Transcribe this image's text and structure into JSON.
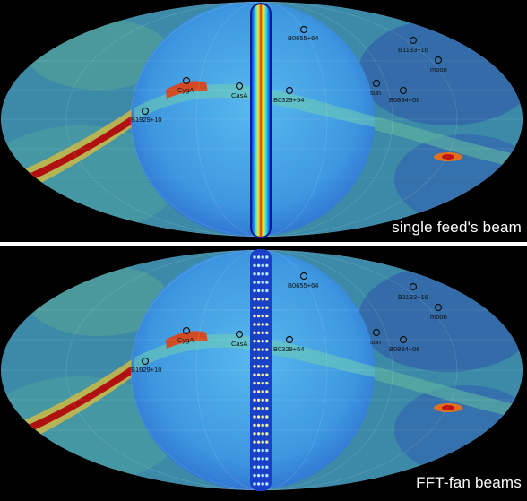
{
  "panels": [
    {
      "caption": "single feed's beam",
      "beam_style": "single-feed",
      "sources": [
        {
          "name": "B0655+64"
        },
        {
          "name": "B1133+16"
        },
        {
          "name": "moon"
        },
        {
          "name": "CygA"
        },
        {
          "name": "CasA"
        },
        {
          "name": "B0329+54"
        },
        {
          "name": "sun"
        },
        {
          "name": "B0834+06"
        },
        {
          "name": "B1929+10"
        }
      ]
    },
    {
      "caption": "FFT-fan beams",
      "beam_style": "fft-fan",
      "sources": [
        {
          "name": "B0655+64"
        },
        {
          "name": "B1133+16"
        },
        {
          "name": "moon"
        },
        {
          "name": "CygA"
        },
        {
          "name": "CasA"
        },
        {
          "name": "B0329+54"
        },
        {
          "name": "sun"
        },
        {
          "name": "B0834+06"
        },
        {
          "name": "B1929+10"
        }
      ]
    }
  ],
  "colors": {
    "background": "#000000",
    "sky_outer": "#3f8fb0",
    "sky_hemisphere": "#3aa0e6",
    "galactic_plane": "#b01010",
    "source_marker": "#111111",
    "caption_text": "#ffffff"
  }
}
